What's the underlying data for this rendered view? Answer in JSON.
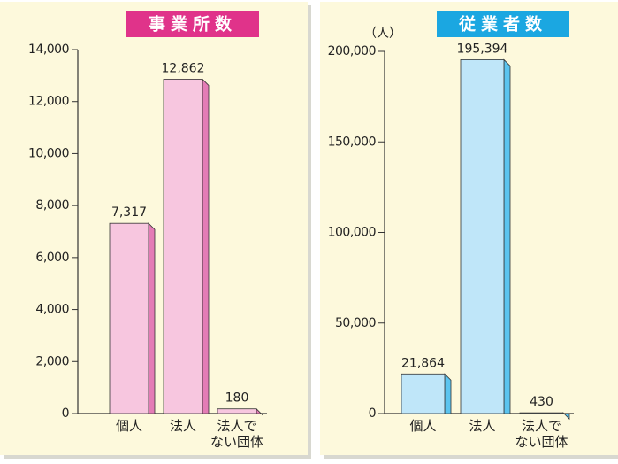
{
  "chart_data": [
    {
      "type": "bar",
      "title": "事業所数",
      "title_color": "#e0338a",
      "color": "#f7c6df",
      "side_color": "#e47cb6",
      "categories": [
        "個人",
        "法人",
        "法人で\nない団体"
      ],
      "values": [
        7317,
        12862,
        180
      ],
      "value_labels": [
        "7,317",
        "12,862",
        "180"
      ],
      "ylim": [
        0,
        14000
      ],
      "yticks": [
        0,
        {
          "value": 2000,
          "label": "2,000"
        },
        {
          "value": 4000,
          "label": "4,000"
        },
        {
          "value": 6000,
          "label": "6,000"
        },
        {
          "value": 8000,
          "label": "8,000"
        },
        {
          "value": 10000,
          "label": "10,000"
        },
        {
          "value": 12000,
          "label": "12,000"
        },
        {
          "value": 14000,
          "label": "14,000"
        }
      ]
    },
    {
      "type": "bar",
      "title": "従業者数",
      "title_color": "#1ba7e1",
      "color": "#bfe6f9",
      "side_color": "#5bc4ef",
      "ylabel": "（人）",
      "categories": [
        "個人",
        "法人",
        "法人で\nない団体"
      ],
      "values": [
        21864,
        195394,
        430
      ],
      "value_labels": [
        "21,864",
        "195,394",
        "430"
      ],
      "ylim": [
        0,
        200000
      ],
      "yticks": [
        0,
        {
          "value": 50000,
          "label": "50,000"
        },
        {
          "value": 100000,
          "label": "100,000"
        },
        {
          "value": 150000,
          "label": "150,000"
        },
        {
          "value": 200000,
          "label": "200,000"
        }
      ]
    }
  ]
}
